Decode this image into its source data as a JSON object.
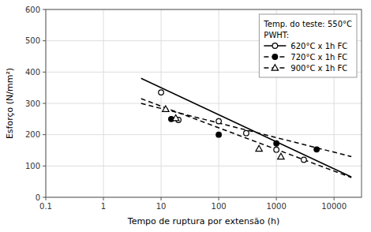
{
  "chart_data": {
    "type": "line",
    "x_label": "Tempo de ruptura por extensão (h)",
    "y_label": "Esforço (N/mm²)",
    "log": "x",
    "grid": true,
    "legend": "upper right",
    "legend_title": [
      "Temp. do teste: 550°C",
      "PWHT:"
    ],
    "xlim": [
      0.1,
      30000
    ],
    "ylim": [
      0,
      600
    ],
    "xticks": [
      0.1,
      1,
      10,
      100,
      1000,
      10000
    ],
    "yticks": [
      0,
      100,
      200,
      300,
      400,
      500,
      600
    ],
    "series": [
      {
        "name": "620°C x 1h FC",
        "color": "#000000",
        "line_style": "solid",
        "marker": "circle-open",
        "x": [
          10,
          20,
          100,
          300,
          1000,
          3000
        ],
        "values": [
          335,
          247,
          243,
          205,
          152,
          120
        ],
        "fit_x": [
          4.5,
          20000
        ],
        "fit_values": [
          380,
          65
        ]
      },
      {
        "name": "720°C x 1h FC",
        "color": "#000000",
        "line_style": "dashed",
        "marker": "circle-filled",
        "x": [
          15,
          100,
          1000,
          5000
        ],
        "values": [
          250,
          200,
          172,
          153
        ],
        "fit_x": [
          4.5,
          20000
        ],
        "fit_values": [
          300,
          130
        ]
      },
      {
        "name": "900°C x 1h FC",
        "color": "#000000",
        "line_style": "dashed",
        "marker": "triangle-open",
        "x": [
          12,
          18,
          500,
          1200
        ],
        "values": [
          282,
          253,
          155,
          130
        ],
        "fit_x": [
          4.5,
          20000
        ],
        "fit_values": [
          315,
          63
        ]
      }
    ]
  }
}
